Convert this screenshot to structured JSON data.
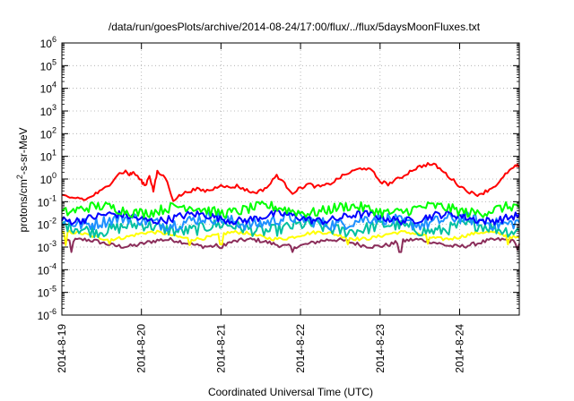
{
  "chart_data": {
    "type": "line",
    "title": "/data/run/goesPlots/archive/2014-08-24/17:00/flux/../flux/5daysMoonFluxes.txt",
    "xlabel": "Coordinated Universal Time (UTC)",
    "ylabel_parts": {
      "pre": "protons/cm",
      "sup": "2",
      "post": "-s-sr-MeV"
    },
    "y_scale": "log",
    "ylim": [
      1e-06,
      1000000.0
    ],
    "xlim": [
      0,
      5.75
    ],
    "x_tick_labels": [
      "2014-8-19",
      "2014-8-20",
      "2014-8-21",
      "2014-8-22",
      "2014-8-23",
      "2014-8-24"
    ],
    "y_tick_labels": [
      {
        "base": "10",
        "exp": "-6"
      },
      {
        "base": "10",
        "exp": "-5"
      },
      {
        "base": "10",
        "exp": "-4"
      },
      {
        "base": "10",
        "exp": "-3"
      },
      {
        "base": "10",
        "exp": "-2"
      },
      {
        "base": "10",
        "exp": "-1"
      },
      {
        "base": "10",
        "exp": "0"
      },
      {
        "base": "10",
        "exp": "1"
      },
      {
        "base": "10",
        "exp": "2"
      },
      {
        "base": "10",
        "exp": "3"
      },
      {
        "base": "10",
        "exp": "4"
      },
      {
        "base": "10",
        "exp": "5"
      },
      {
        "base": "10",
        "exp": "6"
      }
    ],
    "grid": true,
    "series": [
      {
        "color": "#8B2D5A",
        "base": 0.0015,
        "variation": 0.18,
        "dips": [
          [
            0.12,
            0.0006
          ],
          [
            2.0,
            0.0009
          ],
          [
            2.9,
            0.0006
          ],
          [
            4.25,
            0.0006
          ],
          [
            5.72,
            0.0008
          ]
        ],
        "points": []
      },
      {
        "color": "#FFFF00",
        "base": 0.0032,
        "variation": 0.15,
        "dips": [
          [
            0.05,
            0.0012
          ],
          [
            0.6,
            0.0014
          ],
          [
            1.6,
            0.0012
          ],
          [
            2.0,
            0.0013
          ],
          [
            3.6,
            0.0013
          ],
          [
            4.6,
            0.0014
          ],
          [
            5.6,
            0.0013
          ]
        ],
        "points": []
      },
      {
        "color": "#00C0A0",
        "base": 0.007,
        "variation": 0.55,
        "dips": [],
        "points": []
      },
      {
        "color": "#1E90FF",
        "base": 0.014,
        "variation": 0.55,
        "dips": [],
        "points": []
      },
      {
        "color": "#0000FF",
        "base": 0.02,
        "variation": 0.35,
        "dips": [],
        "points": []
      },
      {
        "color": "#00FF00",
        "base": 0.045,
        "variation": 0.45,
        "dips": [],
        "points": []
      },
      {
        "color": "#FF0000",
        "base": null,
        "variation": 0.15,
        "dips": [],
        "points": [
          [
            0.0,
            0.18
          ],
          [
            0.1,
            0.14
          ],
          [
            0.2,
            0.15
          ],
          [
            0.3,
            0.12
          ],
          [
            0.4,
            0.2
          ],
          [
            0.5,
            0.3
          ],
          [
            0.6,
            0.6
          ],
          [
            0.7,
            1.6
          ],
          [
            0.8,
            2.2
          ],
          [
            0.85,
            1.5
          ],
          [
            0.9,
            2.0
          ],
          [
            1.0,
            0.8
          ],
          [
            1.05,
            0.5
          ],
          [
            1.1,
            1.5
          ],
          [
            1.15,
            0.3
          ],
          [
            1.2,
            2.0
          ],
          [
            1.3,
            1.2
          ],
          [
            1.4,
            0.12
          ],
          [
            1.5,
            0.2
          ],
          [
            1.6,
            0.3
          ],
          [
            1.7,
            0.35
          ],
          [
            1.8,
            0.3
          ],
          [
            1.9,
            0.35
          ],
          [
            2.0,
            0.6
          ],
          [
            2.1,
            0.4
          ],
          [
            2.2,
            0.5
          ],
          [
            2.3,
            0.35
          ],
          [
            2.4,
            0.25
          ],
          [
            2.5,
            0.3
          ],
          [
            2.6,
            0.5
          ],
          [
            2.7,
            1.5
          ],
          [
            2.8,
            0.6
          ],
          [
            2.9,
            0.25
          ],
          [
            3.0,
            0.4
          ],
          [
            3.1,
            0.6
          ],
          [
            3.2,
            0.45
          ],
          [
            3.3,
            0.5
          ],
          [
            3.4,
            0.7
          ],
          [
            3.5,
            1.2
          ],
          [
            3.6,
            1.8
          ],
          [
            3.7,
            2.5
          ],
          [
            3.8,
            3.2
          ],
          [
            3.9,
            2.2
          ],
          [
            4.0,
            0.8
          ],
          [
            4.1,
            0.6
          ],
          [
            4.2,
            0.9
          ],
          [
            4.3,
            1.4
          ],
          [
            4.4,
            2.5
          ],
          [
            4.5,
            3.5
          ],
          [
            4.6,
            4.5
          ],
          [
            4.7,
            4.0
          ],
          [
            4.8,
            2.0
          ],
          [
            4.9,
            1.0
          ],
          [
            5.0,
            0.5
          ],
          [
            5.1,
            0.3
          ],
          [
            5.2,
            0.2
          ],
          [
            5.3,
            0.25
          ],
          [
            5.4,
            0.4
          ],
          [
            5.5,
            0.7
          ],
          [
            5.6,
            2.0
          ],
          [
            5.7,
            3.5
          ],
          [
            5.75,
            4.0
          ]
        ]
      }
    ]
  }
}
